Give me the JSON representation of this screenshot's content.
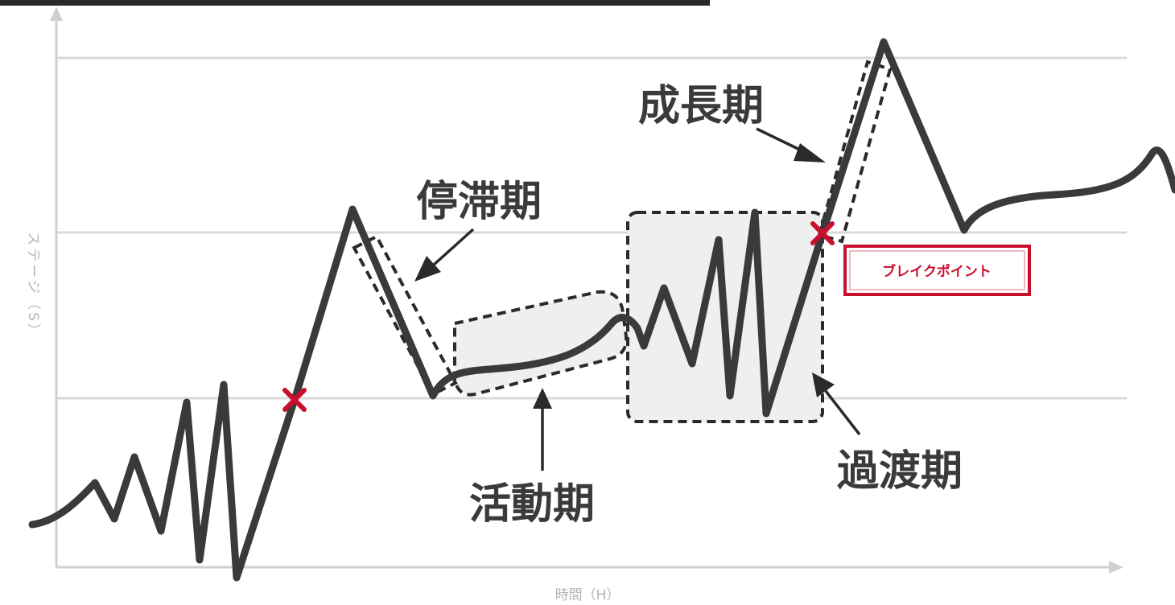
{
  "diagram": {
    "phases": {
      "stagnation": "停滞期",
      "activity": "活動期",
      "transition": "過渡期",
      "growth": "成長期"
    },
    "breakpoint_label": "ブレイクポイント",
    "axis": {
      "y_label": "ステージ（S）",
      "x_label": "時間（H）"
    },
    "colors": {
      "line": "#3a3a3a",
      "grid": "#d9d9d9",
      "axis": "#cfcfcf",
      "accent": "#c8102e",
      "box_fill": "#efefef"
    }
  }
}
